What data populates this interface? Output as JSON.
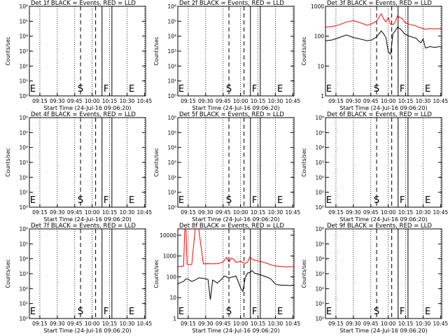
{
  "chart_data": [
    {
      "type": "line",
      "title": "Det 1f BLACK = Events, RED = LLD",
      "ylabel": "Counts/sec",
      "xlabel": "Start Time (24-Jul-16 09:06:20)",
      "x_ticks": [
        "09:15",
        "09:30",
        "09:45",
        "10:00",
        "10:15",
        "10:30",
        "10:45"
      ],
      "y_ticks": [
        "10⁰",
        "10¹",
        "10²",
        "10³",
        "10⁴",
        "10⁵",
        "10⁶"
      ],
      "ylim": [
        1,
        1000000
      ],
      "log_y": true,
      "markers": [
        "E",
        "S",
        "F",
        "E"
      ],
      "series": []
    },
    {
      "type": "line",
      "title": "Det 2f BLACK = Events, RED = LLD",
      "ylabel": "Counts/sec",
      "xlabel": "Start Time (24-Jul-16 09:06:20)",
      "x_ticks": [
        "09:15",
        "09:30",
        "09:45",
        "10:00",
        "10:15",
        "10:30",
        "10:45"
      ],
      "y_ticks": [
        "10⁰",
        "10¹",
        "10²",
        "10³",
        "10⁴",
        "10⁵",
        "10⁶"
      ],
      "ylim": [
        1,
        1000000
      ],
      "log_y": true,
      "markers": [
        "E",
        "S",
        "F",
        "E"
      ],
      "series": []
    },
    {
      "type": "line",
      "title": "Det 3f BLACK = Events, RED = LLD",
      "ylabel": "Counts/sec",
      "xlabel": "Start Time (24-Jul-16 09:06:20)",
      "x_ticks": [
        "09:15",
        "09:30",
        "09:45",
        "10:00",
        "10:15",
        "10:30",
        "10:45"
      ],
      "y_ticks": [
        "1",
        "10",
        "100",
        "1000"
      ],
      "ylim": [
        1,
        1000
      ],
      "log_y": true,
      "markers": [
        "E",
        "S",
        "F",
        "E"
      ],
      "series": [
        {
          "color": "#ff0000",
          "x": [
            0,
            6,
            12,
            18,
            24,
            30,
            36,
            40,
            44,
            48,
            50,
            52,
            54,
            56,
            58,
            60,
            62,
            64,
            66,
            68,
            70,
            72,
            74,
            76,
            78,
            80,
            82,
            84,
            86,
            90,
            94,
            98,
            100
          ],
          "y": [
            200,
            210,
            240,
            300,
            330,
            280,
            230,
            260,
            320,
            560,
            380,
            300,
            420,
            250,
            240,
            300,
            480,
            420,
            390,
            300,
            270,
            250,
            240,
            230,
            220,
            200,
            190,
            180,
            170,
            180,
            175,
            180,
            175
          ]
        },
        {
          "color": "#000000",
          "x": [
            0,
            6,
            12,
            18,
            24,
            30,
            36,
            40,
            44,
            48,
            50,
            52,
            54,
            56,
            58,
            60,
            62,
            64,
            66,
            68,
            70,
            72,
            74,
            76,
            78,
            80,
            82,
            84,
            86,
            90,
            94,
            98,
            100
          ],
          "y": [
            70,
            75,
            90,
            110,
            90,
            80,
            70,
            75,
            95,
            150,
            120,
            90,
            30,
            25,
            120,
            150,
            200,
            180,
            150,
            120,
            110,
            100,
            95,
            90,
            85,
            70,
            60,
            80,
            40,
            45,
            42,
            45,
            43
          ]
        }
      ]
    },
    {
      "type": "line",
      "title": "Det 4f BLACK = Events, RED = LLD",
      "ylabel": "Counts/sec",
      "xlabel": "Start Time (24-Jul-16 09:06:20)",
      "x_ticks": [
        "09:15",
        "09:30",
        "09:45",
        "10:00",
        "10:15",
        "10:30",
        "10:45"
      ],
      "y_ticks": [
        "10⁰",
        "10¹",
        "10²",
        "10³",
        "10⁴",
        "10⁵",
        "10⁶"
      ],
      "ylim": [
        1,
        1000000
      ],
      "log_y": true,
      "markers": [
        "E",
        "S",
        "F",
        "E"
      ],
      "series": []
    },
    {
      "type": "line",
      "title": "Det 5f BLACK = Events, RED = LLD",
      "ylabel": "Counts/sec",
      "xlabel": "Start Time (24-Jul-16 09:06:20)",
      "x_ticks": [
        "09:15",
        "09:30",
        "09:45",
        "10:00",
        "10:15",
        "10:30",
        "10:45"
      ],
      "y_ticks": [
        "10⁰",
        "10¹",
        "10²",
        "10³",
        "10⁴",
        "10⁵",
        "10⁶"
      ],
      "ylim": [
        1,
        1000000
      ],
      "log_y": true,
      "markers": [
        "E",
        "S",
        "F",
        "E"
      ],
      "series": []
    },
    {
      "type": "line",
      "title": "Det 6f BLACK = Events, RED = LLD",
      "ylabel": "Counts/sec",
      "xlabel": "Start Time (24-Jul-16 09:06:20)",
      "x_ticks": [
        "09:15",
        "09:30",
        "09:45",
        "10:00",
        "10:15",
        "10:30",
        "10:45"
      ],
      "y_ticks": [
        "10⁰",
        "10¹",
        "10²",
        "10³",
        "10⁴",
        "10⁵",
        "10⁶"
      ],
      "ylim": [
        1,
        1000000
      ],
      "log_y": true,
      "markers": [
        "E",
        "S",
        "F",
        "E"
      ],
      "series": []
    },
    {
      "type": "line",
      "title": "Det 7f BLACK = Events, RED = LLD",
      "ylabel": "Counts/sec",
      "xlabel": "Start Time (24-Jul-16 09:06:20)",
      "x_ticks": [
        "09:15",
        "09:30",
        "09:45",
        "10:00",
        "10:15",
        "10:30",
        "10:45"
      ],
      "y_ticks": [
        "10⁰",
        "10¹",
        "10²",
        "10³",
        "10⁴",
        "10⁵",
        "10⁶"
      ],
      "ylim": [
        1,
        1000000
      ],
      "log_y": true,
      "markers": [
        "E",
        "S",
        "F",
        "E"
      ],
      "series": []
    },
    {
      "type": "line",
      "title": "Det 8f BLACK = Events, RED = LLD",
      "ylabel": "Counts/sec",
      "xlabel": "Start Time (24-Jul-16 09:06:20)",
      "x_ticks": [
        "09:15",
        "09:30",
        "09:45",
        "10:00",
        "10:15",
        "10:30",
        "10:45"
      ],
      "y_ticks": [
        "1",
        "10",
        "100",
        "1000",
        "10000"
      ],
      "ylim": [
        1,
        20000
      ],
      "log_y": true,
      "markers": [
        "E",
        "S",
        "F",
        "E"
      ],
      "series": [
        {
          "color": "#ff0000",
          "x": [
            0,
            3,
            5,
            6,
            7,
            8,
            10,
            12,
            15,
            18,
            22,
            26,
            30,
            34,
            38,
            40,
            42,
            44,
            46,
            48,
            50,
            52,
            54,
            56,
            58,
            60,
            62,
            64,
            66,
            68,
            70,
            72,
            74,
            76,
            78,
            80,
            84,
            88,
            92,
            96,
            100
          ],
          "y": [
            300,
            320,
            330,
            20000,
            20000,
            400,
            380,
            390,
            20000,
            20000,
            420,
            430,
            420,
            430,
            480,
            600,
            850,
            520,
            800,
            700,
            500,
            520,
            560,
            480,
            450,
            500,
            900,
            700,
            640,
            600,
            560,
            530,
            500,
            460,
            420,
            380,
            330,
            320,
            300,
            310,
            300
          ]
        },
        {
          "color": "#000000",
          "x": [
            0,
            3,
            5,
            6,
            7,
            8,
            10,
            12,
            15,
            18,
            22,
            26,
            28,
            30,
            32,
            34,
            38,
            40,
            42,
            44,
            46,
            48,
            50,
            52,
            54,
            56,
            58,
            60,
            62,
            64,
            66,
            68,
            70,
            72,
            74,
            76,
            78,
            80,
            84,
            88,
            92,
            96,
            100
          ],
          "y": [
            45,
            55,
            60,
            70,
            80,
            80,
            70,
            60,
            70,
            90,
            85,
            75,
            8,
            70,
            60,
            50,
            80,
            110,
            100,
            90,
            95,
            100,
            110,
            60,
            30,
            20,
            90,
            150,
            160,
            200,
            150,
            140,
            130,
            120,
            110,
            100,
            90,
            80,
            45,
            40,
            40,
            38,
            40
          ]
        }
      ]
    },
    {
      "type": "line",
      "title": "Det 9f BLACK = Events, RED = LLD",
      "ylabel": "Counts/sec",
      "xlabel": "Start Time (24-Jul-16 09:06:20)",
      "x_ticks": [
        "09:15",
        "09:30",
        "09:45",
        "10:00",
        "10:15",
        "10:30",
        "10:45"
      ],
      "y_ticks": [
        "10⁰",
        "10¹",
        "10²",
        "10³",
        "10⁴",
        "10⁵",
        "10⁶"
      ],
      "ylim": [
        1,
        1000000
      ],
      "log_y": true,
      "markers": [
        "E",
        "S",
        "F",
        "E"
      ],
      "series": []
    }
  ]
}
